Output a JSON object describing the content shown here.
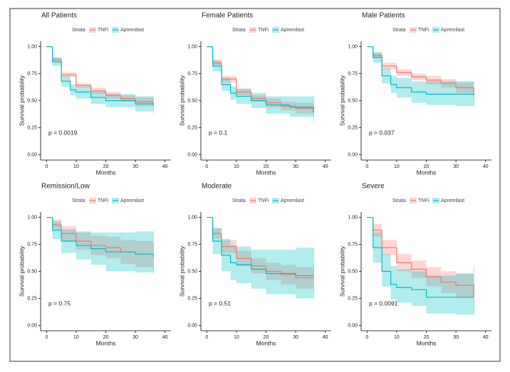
{
  "chart_data": [
    {
      "type": "line",
      "title": "All Patients",
      "legend_title": "Strata",
      "xlabel": "Months",
      "ylabel": "Survival probability",
      "annotation": "p = 0.0019",
      "xlim": [
        -2,
        42
      ],
      "ylim": [
        -0.05,
        1.05
      ],
      "xticks": [
        0,
        10,
        20,
        30,
        40
      ],
      "yticks": [
        {
          "value": 0,
          "label": "0.00"
        },
        0.25,
        {
          "value": 0.5,
          "label": "0.50"
        },
        0.75,
        {
          "value": 1,
          "label": "1.00"
        }
      ],
      "series": [
        {
          "name": "TNFi",
          "color": "#f8766d",
          "x": [
            0,
            2,
            5,
            10,
            15,
            20,
            25,
            30,
            36
          ],
          "values": [
            1,
            0.88,
            0.74,
            0.64,
            0.59,
            0.55,
            0.52,
            0.49,
            0.47
          ],
          "lower": [
            1,
            0.86,
            0.72,
            0.62,
            0.56,
            0.52,
            0.49,
            0.45,
            0.42
          ],
          "upper": [
            1,
            0.9,
            0.76,
            0.66,
            0.62,
            0.58,
            0.55,
            0.53,
            0.52
          ]
        },
        {
          "name": "Apremilast",
          "color": "#00bfc4",
          "x": [
            0,
            2,
            5,
            8,
            10,
            15,
            20,
            30,
            36
          ],
          "values": [
            1,
            0.86,
            0.68,
            0.6,
            0.58,
            0.53,
            0.5,
            0.47,
            0.46
          ],
          "lower": [
            1,
            0.82,
            0.63,
            0.55,
            0.52,
            0.47,
            0.44,
            0.4,
            0.38
          ],
          "upper": [
            1,
            0.9,
            0.73,
            0.65,
            0.63,
            0.59,
            0.56,
            0.54,
            0.55
          ]
        }
      ]
    },
    {
      "type": "line",
      "title": "Female Patients",
      "legend_title": "Strata",
      "xlabel": "Months",
      "ylabel": "Survival probability",
      "annotation": "p = 0.1",
      "xlim": [
        -2,
        42
      ],
      "ylim": [
        -0.05,
        1.05
      ],
      "xticks": [
        0,
        10,
        20,
        30,
        40
      ],
      "yticks": [
        {
          "value": 0,
          "label": "0.00"
        },
        0.25,
        {
          "value": 0.5,
          "label": "0.50"
        },
        0.75,
        {
          "value": 1,
          "label": "1.00"
        }
      ],
      "series": [
        {
          "name": "TNFi",
          "color": "#f8766d",
          "x": [
            0,
            2,
            5,
            10,
            15,
            20,
            25,
            30,
            36
          ],
          "values": [
            1,
            0.85,
            0.7,
            0.58,
            0.52,
            0.48,
            0.45,
            0.43,
            0.4
          ],
          "lower": [
            1,
            0.82,
            0.67,
            0.55,
            0.49,
            0.44,
            0.41,
            0.38,
            0.34
          ],
          "upper": [
            1,
            0.88,
            0.73,
            0.61,
            0.55,
            0.52,
            0.49,
            0.48,
            0.46
          ]
        },
        {
          "name": "Apremilast",
          "color": "#00bfc4",
          "x": [
            0,
            2,
            5,
            8,
            10,
            15,
            20,
            28,
            36
          ],
          "values": [
            1,
            0.82,
            0.65,
            0.57,
            0.54,
            0.5,
            0.46,
            0.44,
            0.39
          ],
          "lower": [
            1,
            0.77,
            0.59,
            0.51,
            0.47,
            0.43,
            0.38,
            0.35,
            0.3
          ],
          "upper": [
            1,
            0.87,
            0.71,
            0.63,
            0.61,
            0.57,
            0.54,
            0.54,
            0.55
          ]
        }
      ]
    },
    {
      "type": "line",
      "title": "Male Patients",
      "legend_title": "Strata",
      "xlabel": "Months",
      "ylabel": "Survival probability",
      "annotation": "p = 0.037",
      "xlim": [
        -2,
        42
      ],
      "ylim": [
        -0.05,
        1.05
      ],
      "xticks": [
        0,
        10,
        20,
        30,
        40
      ],
      "yticks": [
        {
          "value": 0,
          "label": "0.00"
        },
        0.25,
        {
          "value": 0.5,
          "label": "0.50"
        },
        0.75,
        {
          "value": 1,
          "label": "1.00"
        }
      ],
      "series": [
        {
          "name": "TNFi",
          "color": "#f8766d",
          "x": [
            0,
            2,
            5,
            10,
            15,
            20,
            25,
            30,
            36
          ],
          "values": [
            1,
            0.92,
            0.82,
            0.76,
            0.72,
            0.69,
            0.66,
            0.62,
            0.57
          ],
          "lower": [
            1,
            0.9,
            0.79,
            0.73,
            0.69,
            0.65,
            0.62,
            0.57,
            0.51
          ],
          "upper": [
            1,
            0.94,
            0.85,
            0.79,
            0.75,
            0.73,
            0.7,
            0.67,
            0.63
          ]
        },
        {
          "name": "Apremilast",
          "color": "#00bfc4",
          "x": [
            0,
            2,
            5,
            8,
            10,
            15,
            20,
            30,
            36
          ],
          "values": [
            1,
            0.9,
            0.73,
            0.65,
            0.62,
            0.58,
            0.56,
            0.56,
            0.55
          ],
          "lower": [
            1,
            0.85,
            0.66,
            0.57,
            0.53,
            0.48,
            0.46,
            0.45,
            0.45
          ],
          "upper": [
            1,
            0.95,
            0.8,
            0.73,
            0.71,
            0.68,
            0.68,
            0.68,
            0.68
          ]
        }
      ]
    },
    {
      "type": "line",
      "title": "Remission/Low",
      "legend_title": "Strata",
      "xlabel": "Months",
      "ylabel": "Survival probability",
      "annotation": "p = 0.75",
      "xlim": [
        -2,
        42
      ],
      "ylim": [
        -0.05,
        1.05
      ],
      "xticks": [
        0,
        10,
        20,
        30,
        40
      ],
      "yticks": [
        {
          "value": 0,
          "label": "0.00"
        },
        0.25,
        {
          "value": 0.5,
          "label": "0.50"
        },
        0.75,
        {
          "value": 1,
          "label": "1.00"
        }
      ],
      "series": [
        {
          "name": "TNFi",
          "color": "#f8766d",
          "x": [
            0,
            2,
            5,
            10,
            15,
            20,
            25,
            30,
            36
          ],
          "values": [
            1,
            0.93,
            0.85,
            0.78,
            0.74,
            0.72,
            0.68,
            0.66,
            0.63
          ],
          "lower": [
            1,
            0.88,
            0.78,
            0.7,
            0.65,
            0.62,
            0.57,
            0.54,
            0.49
          ],
          "upper": [
            1,
            0.98,
            0.92,
            0.86,
            0.83,
            0.82,
            0.79,
            0.78,
            0.77
          ]
        },
        {
          "name": "Apremilast",
          "color": "#00bfc4",
          "x": [
            0,
            2,
            5,
            10,
            15,
            20,
            30,
            36
          ],
          "values": [
            1,
            0.88,
            0.78,
            0.74,
            0.71,
            0.68,
            0.66,
            0.65
          ],
          "lower": [
            1,
            0.8,
            0.67,
            0.61,
            0.56,
            0.5,
            0.49,
            0.48
          ],
          "upper": [
            1,
            0.96,
            0.89,
            0.87,
            0.86,
            0.86,
            0.87,
            0.87
          ]
        }
      ]
    },
    {
      "type": "line",
      "title": "Moderate",
      "legend_title": "Strata",
      "xlabel": "Months",
      "ylabel": "Survival probability",
      "annotation": "p = 0.51",
      "xlim": [
        -2,
        42
      ],
      "ylim": [
        -0.05,
        1.05
      ],
      "xticks": [
        0,
        10,
        20,
        30,
        40
      ],
      "yticks": [
        {
          "value": 0,
          "label": "0.00"
        },
        0.25,
        {
          "value": 0.5,
          "label": "0.50"
        },
        0.75,
        {
          "value": 1,
          "label": "1.00"
        }
      ],
      "series": [
        {
          "name": "TNFi",
          "color": "#f8766d",
          "x": [
            0,
            2,
            5,
            10,
            15,
            20,
            25,
            30,
            36
          ],
          "values": [
            1,
            0.85,
            0.73,
            0.62,
            0.55,
            0.5,
            0.47,
            0.44,
            0.44
          ],
          "lower": [
            1,
            0.8,
            0.67,
            0.55,
            0.48,
            0.42,
            0.38,
            0.34,
            0.31
          ],
          "upper": [
            1,
            0.9,
            0.79,
            0.69,
            0.62,
            0.58,
            0.56,
            0.54,
            0.57
          ]
        },
        {
          "name": "Apremilast",
          "color": "#00bfc4",
          "x": [
            0,
            2,
            5,
            8,
            10,
            15,
            20,
            30,
            36
          ],
          "values": [
            1,
            0.78,
            0.65,
            0.58,
            0.56,
            0.52,
            0.48,
            0.46,
            0.46
          ],
          "lower": [
            1,
            0.66,
            0.5,
            0.42,
            0.39,
            0.34,
            0.29,
            0.25,
            0.25
          ],
          "upper": [
            1,
            0.9,
            0.8,
            0.74,
            0.73,
            0.7,
            0.7,
            0.72,
            0.72
          ]
        }
      ]
    },
    {
      "type": "line",
      "title": "Severe",
      "legend_title": "Strata",
      "xlabel": "Months",
      "ylabel": "Survival probability",
      "annotation": "p = 0.0091",
      "xlim": [
        -2,
        42
      ],
      "ylim": [
        -0.05,
        1.05
      ],
      "xticks": [
        0,
        10,
        20,
        30,
        40
      ],
      "yticks": [
        {
          "value": 0,
          "label": "0.00"
        },
        0.25,
        {
          "value": 0.5,
          "label": "0.50"
        },
        0.75,
        {
          "value": 1,
          "label": "1.00"
        }
      ],
      "series": [
        {
          "name": "TNFi",
          "color": "#f8766d",
          "x": [
            0,
            2,
            5,
            10,
            15,
            20,
            25,
            30,
            36
          ],
          "values": [
            1,
            0.88,
            0.72,
            0.58,
            0.52,
            0.45,
            0.4,
            0.37,
            0.27
          ],
          "lower": [
            1,
            0.82,
            0.65,
            0.5,
            0.44,
            0.36,
            0.3,
            0.26,
            0.15
          ],
          "upper": [
            1,
            0.94,
            0.79,
            0.66,
            0.6,
            0.54,
            0.5,
            0.48,
            0.39
          ]
        },
        {
          "name": "Apremilast",
          "color": "#00bfc4",
          "x": [
            0,
            2,
            5,
            8,
            10,
            15,
            20,
            30,
            36
          ],
          "values": [
            1,
            0.72,
            0.5,
            0.38,
            0.35,
            0.33,
            0.26,
            0.26,
            0.26
          ],
          "lower": [
            1,
            0.58,
            0.36,
            0.24,
            0.21,
            0.18,
            0.11,
            0.1,
            0.1
          ],
          "upper": [
            1,
            0.86,
            0.66,
            0.55,
            0.52,
            0.5,
            0.46,
            0.48,
            0.54
          ]
        }
      ]
    }
  ]
}
